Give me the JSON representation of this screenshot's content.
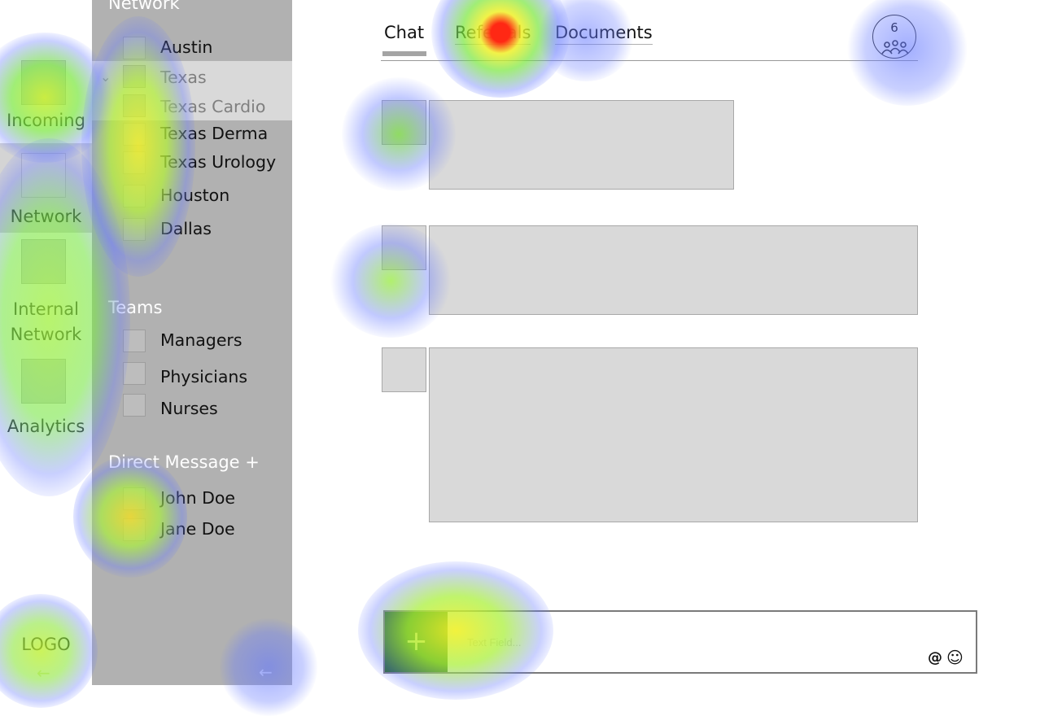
{
  "rail": {
    "items": [
      {
        "label": "Incoming",
        "icon": "inbox-icon"
      },
      {
        "label": "Network",
        "icon": "network-icon",
        "active": true
      },
      {
        "label": "Internal\nNetwork",
        "icon": "internal-network-icon"
      },
      {
        "label": "Analytics",
        "icon": "analytics-icon"
      }
    ],
    "logo": "LOGO",
    "collapse_icon": "arrow-left-icon"
  },
  "sidebar": {
    "network_title": "Network",
    "network_items": [
      {
        "label": "Austin"
      },
      {
        "label": "Texas",
        "highlight": true,
        "expanded": true
      },
      {
        "label": "Texas Cardio",
        "highlight": true
      },
      {
        "label": "Texas Derma"
      },
      {
        "label": "Texas Urology"
      },
      {
        "label": "Houston"
      },
      {
        "label": "Dallas"
      }
    ],
    "teams_title": "Teams",
    "team_items": [
      {
        "label": "Managers"
      },
      {
        "label": "Physicians"
      },
      {
        "label": "Nurses"
      }
    ],
    "dm_title": "Direct Message +",
    "dm_items": [
      {
        "label": "John Doe"
      },
      {
        "label": "Jane Doe"
      }
    ],
    "collapse_icon": "arrow-left-icon"
  },
  "tabs": [
    {
      "label": "Chat",
      "active": true
    },
    {
      "label": "Referrals"
    },
    {
      "label": "Documents"
    }
  ],
  "members": {
    "count": "6",
    "icon": "group-icon"
  },
  "composer": {
    "add_label": "+",
    "placeholder": "Text Field...",
    "at_symbol": "@",
    "emoji_symbol": "☺"
  },
  "colors": {
    "sidebar_bg": "#b1b1b1",
    "highlight_row": "#d9d9d9",
    "message_bg": "#d9d9d9",
    "add_button_bg": "#2a6a1c"
  }
}
